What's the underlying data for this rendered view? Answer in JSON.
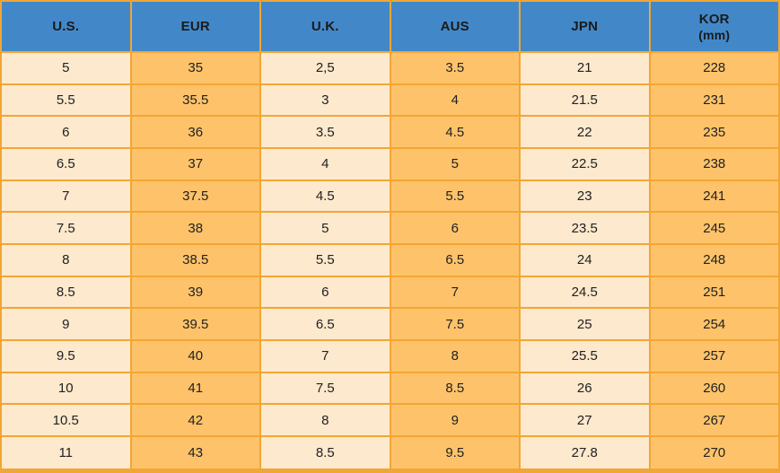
{
  "colors": {
    "header-bg": "#4288C8",
    "cell-light": "#FDE9CD",
    "cell-orange": "#FEC36A",
    "border": "#F2A634",
    "header-text": "#1A1A1A",
    "cell-text": "#212121"
  },
  "chart_data": {
    "type": "table",
    "title": "",
    "columns": [
      {
        "label": "U.S.",
        "sub": ""
      },
      {
        "label": "EUR",
        "sub": ""
      },
      {
        "label": "U.K.",
        "sub": ""
      },
      {
        "label": "AUS",
        "sub": ""
      },
      {
        "label": "JPN",
        "sub": ""
      },
      {
        "label": "KOR",
        "sub": "(mm)"
      }
    ],
    "rows": [
      [
        "5",
        "35",
        "2,5",
        "3.5",
        "21",
        "228"
      ],
      [
        "5.5",
        "35.5",
        "3",
        "4",
        "21.5",
        "231"
      ],
      [
        "6",
        "36",
        "3.5",
        "4.5",
        "22",
        "235"
      ],
      [
        "6.5",
        "37",
        "4",
        "5",
        "22.5",
        "238"
      ],
      [
        "7",
        "37.5",
        "4.5",
        "5.5",
        "23",
        "241"
      ],
      [
        "7.5",
        "38",
        "5",
        "6",
        "23.5",
        "245"
      ],
      [
        "8",
        "38.5",
        "5.5",
        "6.5",
        "24",
        "248"
      ],
      [
        "8.5",
        "39",
        "6",
        "7",
        "24.5",
        "251"
      ],
      [
        "9",
        "39.5",
        "6.5",
        "7.5",
        "25",
        "254"
      ],
      [
        "9.5",
        "40",
        "7",
        "8",
        "25.5",
        "257"
      ],
      [
        "10",
        "41",
        "7.5",
        "8.5",
        "26",
        "260"
      ],
      [
        "10.5",
        "42",
        "8",
        "9",
        "27",
        "267"
      ],
      [
        "11",
        "43",
        "8.5",
        "9.5",
        "27.8",
        "270"
      ]
    ],
    "layout": {
      "columns_equal_width": true,
      "column_fill_pattern": [
        "light",
        "orange",
        "light",
        "orange",
        "light",
        "orange"
      ],
      "grid": "on"
    }
  }
}
